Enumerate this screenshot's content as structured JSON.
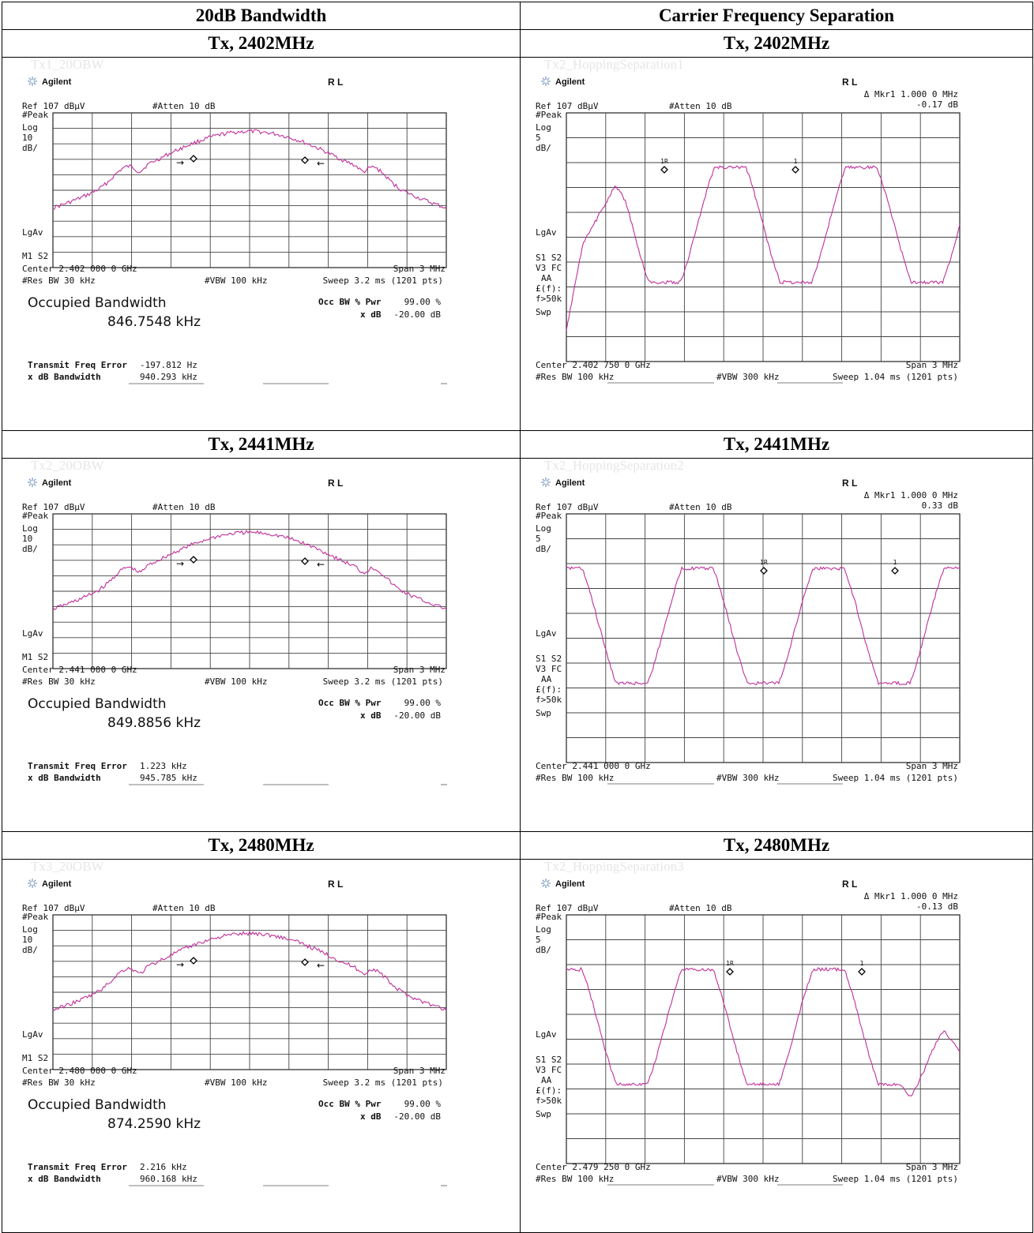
{
  "columns": [
    "20dB Bandwidth",
    "Carrier Frequency Separation"
  ],
  "rows": [
    {
      "label_left": "Tx, 2402MHz",
      "label_right": "Tx, 2402MHz",
      "left": {
        "watermark": "Tx1_20OBW",
        "brand": "Agilent",
        "mode": "R L",
        "ref": "Ref 107 dBµV",
        "atten": "#Atten 10 dB",
        "peak": "#Peak",
        "log": "Log",
        "scale": "10",
        "unit": "dB/",
        "lgav": "LgAv",
        "m1s2": "M1 S2",
        "center": "Center 2.402 000 0 GHz",
        "span": "Span 3 MHz",
        "rbw": "#Res BW 30 kHz",
        "vbw": "#VBW 100 kHz",
        "sweep": "Sweep 3.2 ms (1201 pts)",
        "obw_title": "Occupied Bandwidth",
        "obw_value": "846.7548 kHz",
        "occ_label": "Occ BW % Pwr",
        "occ_value": "99.00 %",
        "xdb_label": "x dB",
        "xdb_value": "-20.00 dB",
        "tfe_label": "Transmit Freq Error",
        "tfe_value": "-197.812 Hz",
        "xbw_label": "x dB Bandwidth",
        "xbw_value": "940.293 kHz"
      },
      "right": {
        "watermark": "Tx2_HoppingSeparation1",
        "brand": "Agilent",
        "mode": "R L",
        "mkr": "Δ Mkr1 1.000 0 MHz",
        "mkr_val": "-0.17 dB",
        "ref": "Ref 107 dBµV",
        "atten": "#Atten 10 dB",
        "peak": "#Peak",
        "log": "Log",
        "scale": "5",
        "unit": "dB/",
        "lgav": "LgAv",
        "s1s2": "S1 S2",
        "v3fc": "V3 FC",
        "aa": "AA",
        "ef": "£(f):",
        "f50": "f>50k",
        "swp": "Swp",
        "center": "Center 2.402 750 0 GHz",
        "span": "Span 3 MHz",
        "rbw": "#Res BW 100 kHz",
        "vbw": "#VBW 300 kHz",
        "sweep": "Sweep 1.04 ms (1201 pts)",
        "m1r": "1R",
        "m1": "1"
      }
    },
    {
      "label_left": "Tx, 2441MHz",
      "label_right": "Tx, 2441MHz",
      "left": {
        "watermark": "Tx2_20OBW",
        "brand": "Agilent",
        "mode": "R L",
        "ref": "Ref 107 dBµV",
        "atten": "#Atten 10 dB",
        "peak": "#Peak",
        "log": "Log",
        "scale": "10",
        "unit": "dB/",
        "lgav": "LgAv",
        "m1s2": "M1 S2",
        "center": "Center 2.441 000 0 GHz",
        "span": "Span 3 MHz",
        "rbw": "#Res BW 30 kHz",
        "vbw": "#VBW 100 kHz",
        "sweep": "Sweep 3.2 ms (1201 pts)",
        "obw_title": "Occupied Bandwidth",
        "obw_value": "849.8856 kHz",
        "occ_label": "Occ BW % Pwr",
        "occ_value": "99.00 %",
        "xdb_label": "x dB",
        "xdb_value": "-20.00 dB",
        "tfe_label": "Transmit Freq Error",
        "tfe_value": "1.223 kHz",
        "xbw_label": "x dB Bandwidth",
        "xbw_value": "945.785 kHz"
      },
      "right": {
        "watermark": "Tx2_HoppingSeparation2",
        "brand": "Agilent",
        "mode": "R L",
        "mkr": "Δ Mkr1 1.000 0 MHz",
        "mkr_val": "0.33 dB",
        "ref": "Ref 107 dBµV",
        "atten": "#Atten 10 dB",
        "peak": "#Peak",
        "log": "Log",
        "scale": "5",
        "unit": "dB/",
        "lgav": "LgAv",
        "s1s2": "S1 S2",
        "v3fc": "V3 FC",
        "aa": "AA",
        "ef": "£(f):",
        "f50": "f>50k",
        "swp": "Swp",
        "center": "Center 2.441 000 0 GHz",
        "span": "Span 3 MHz",
        "rbw": "#Res BW 100 kHz",
        "vbw": "#VBW 300 kHz",
        "sweep": "Sweep 1.04 ms (1201 pts)",
        "m1r": "1R",
        "m1": "1"
      }
    },
    {
      "label_left": "Tx, 2480MHz",
      "label_right": "Tx, 2480MHz",
      "left": {
        "watermark": "Tx3_20OBW",
        "brand": "Agilent",
        "mode": "R L",
        "ref": "Ref 107 dBµV",
        "atten": "#Atten 10 dB",
        "peak": "#Peak",
        "log": "Log",
        "scale": "10",
        "unit": "dB/",
        "lgav": "LgAv",
        "m1s2": "M1 S2",
        "center": "Center 2.480 000 0 GHz",
        "span": "Span 3 MHz",
        "rbw": "#Res BW 30 kHz",
        "vbw": "#VBW 100 kHz",
        "sweep": "Sweep 3.2 ms (1201 pts)",
        "obw_title": "Occupied Bandwidth",
        "obw_value": "874.2590 kHz",
        "occ_label": "Occ BW % Pwr",
        "occ_value": "99.00 %",
        "xdb_label": "x dB",
        "xdb_value": "-20.00 dB",
        "tfe_label": "Transmit Freq Error",
        "tfe_value": "2.216 kHz",
        "xbw_label": "x dB Bandwidth",
        "xbw_value": "960.168 kHz"
      },
      "right": {
        "watermark": "Tx2_HoppingSeparation3",
        "brand": "Agilent",
        "mode": "R L",
        "mkr": "Δ Mkr1 1.000 0 MHz",
        "mkr_val": "-0.13 dB",
        "ref": "Ref 107 dBµV",
        "atten": "#Atten 10 dB",
        "peak": "#Peak",
        "log": "Log",
        "scale": "5",
        "unit": "dB/",
        "lgav": "LgAv",
        "s1s2": "S1 S2",
        "v3fc": "V3 FC",
        "aa": "AA",
        "ef": "£(f):",
        "f50": "f>50k",
        "swp": "Swp",
        "center": "Center 2.479 250 0 GHz",
        "span": "Span 3 MHz",
        "rbw": "#Res BW 100 kHz",
        "vbw": "#VBW 300 kHz",
        "sweep": "Sweep 1.04 ms (1201 pts)",
        "m1r": "1R",
        "m1": "1"
      }
    }
  ],
  "colors": {
    "trace": "#c0309a",
    "grid": "#222222",
    "watermark": "#e6e6e6"
  },
  "icons": {
    "brand_logo": "agilent-spark-icon"
  }
}
